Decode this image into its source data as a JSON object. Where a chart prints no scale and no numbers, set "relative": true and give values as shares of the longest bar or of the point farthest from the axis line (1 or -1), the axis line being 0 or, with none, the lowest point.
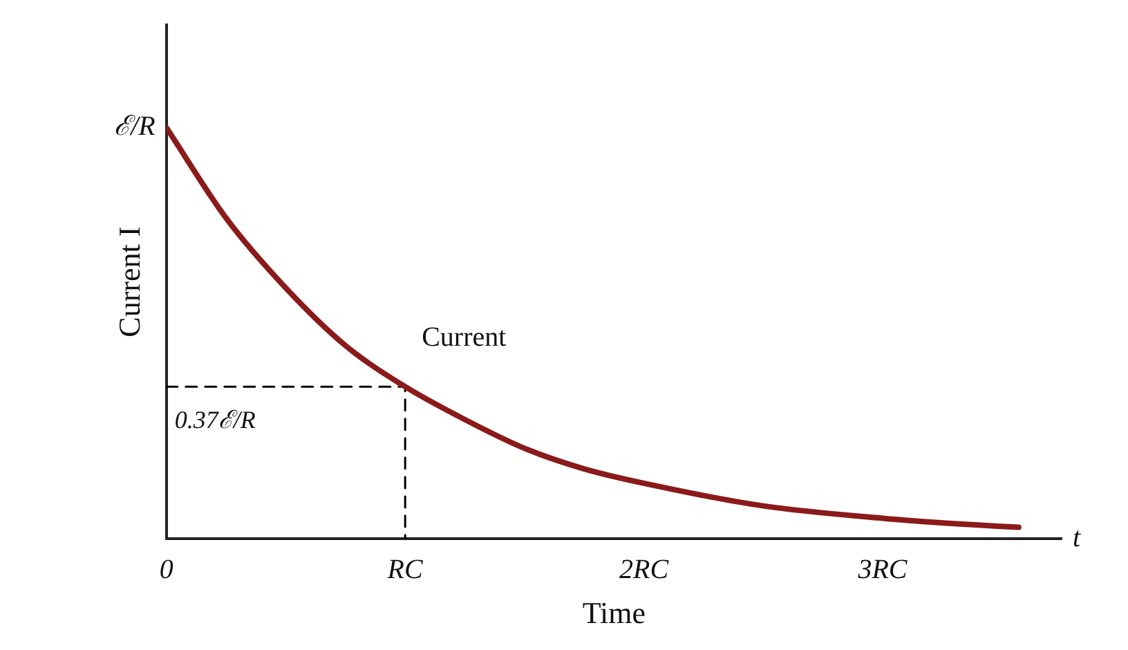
{
  "chart_data": {
    "type": "line",
    "xlabel": "Time",
    "ylabel": "Current I",
    "xlim": [
      0,
      3.75
    ],
    "relative": true,
    "xticks": [
      0,
      {
        "value": 1,
        "label": "RC"
      },
      {
        "value": 2,
        "label": "2RC"
      },
      {
        "value": 3,
        "label": "3RC"
      }
    ],
    "series": [
      {
        "name": "Current",
        "color": "#8b1a1a",
        "x": [
          0,
          0.25,
          0.5,
          0.75,
          1,
          1.25,
          1.5,
          1.75,
          2,
          2.5,
          3,
          3.3,
          3.57
        ],
        "values": [
          1,
          0.78,
          0.61,
          0.47,
          0.37,
          0.29,
          0.22,
          0.17,
          0.135,
          0.08,
          0.05,
          0.037,
          0.028
        ]
      },
      {
        "color": "#000000",
        "line_style": "dashed",
        "x": [
          0,
          1,
          1
        ],
        "values": [
          0.37,
          0.37,
          0
        ]
      }
    ],
    "annotations": [
      {
        "text": "0.37ℰ/R",
        "x": 0,
        "y": 0.37
      },
      {
        "text": "ℰ/R",
        "x": 0,
        "y": 1
      },
      "t"
    ],
    "marker": "none",
    "grid": false,
    "legend": false
  }
}
